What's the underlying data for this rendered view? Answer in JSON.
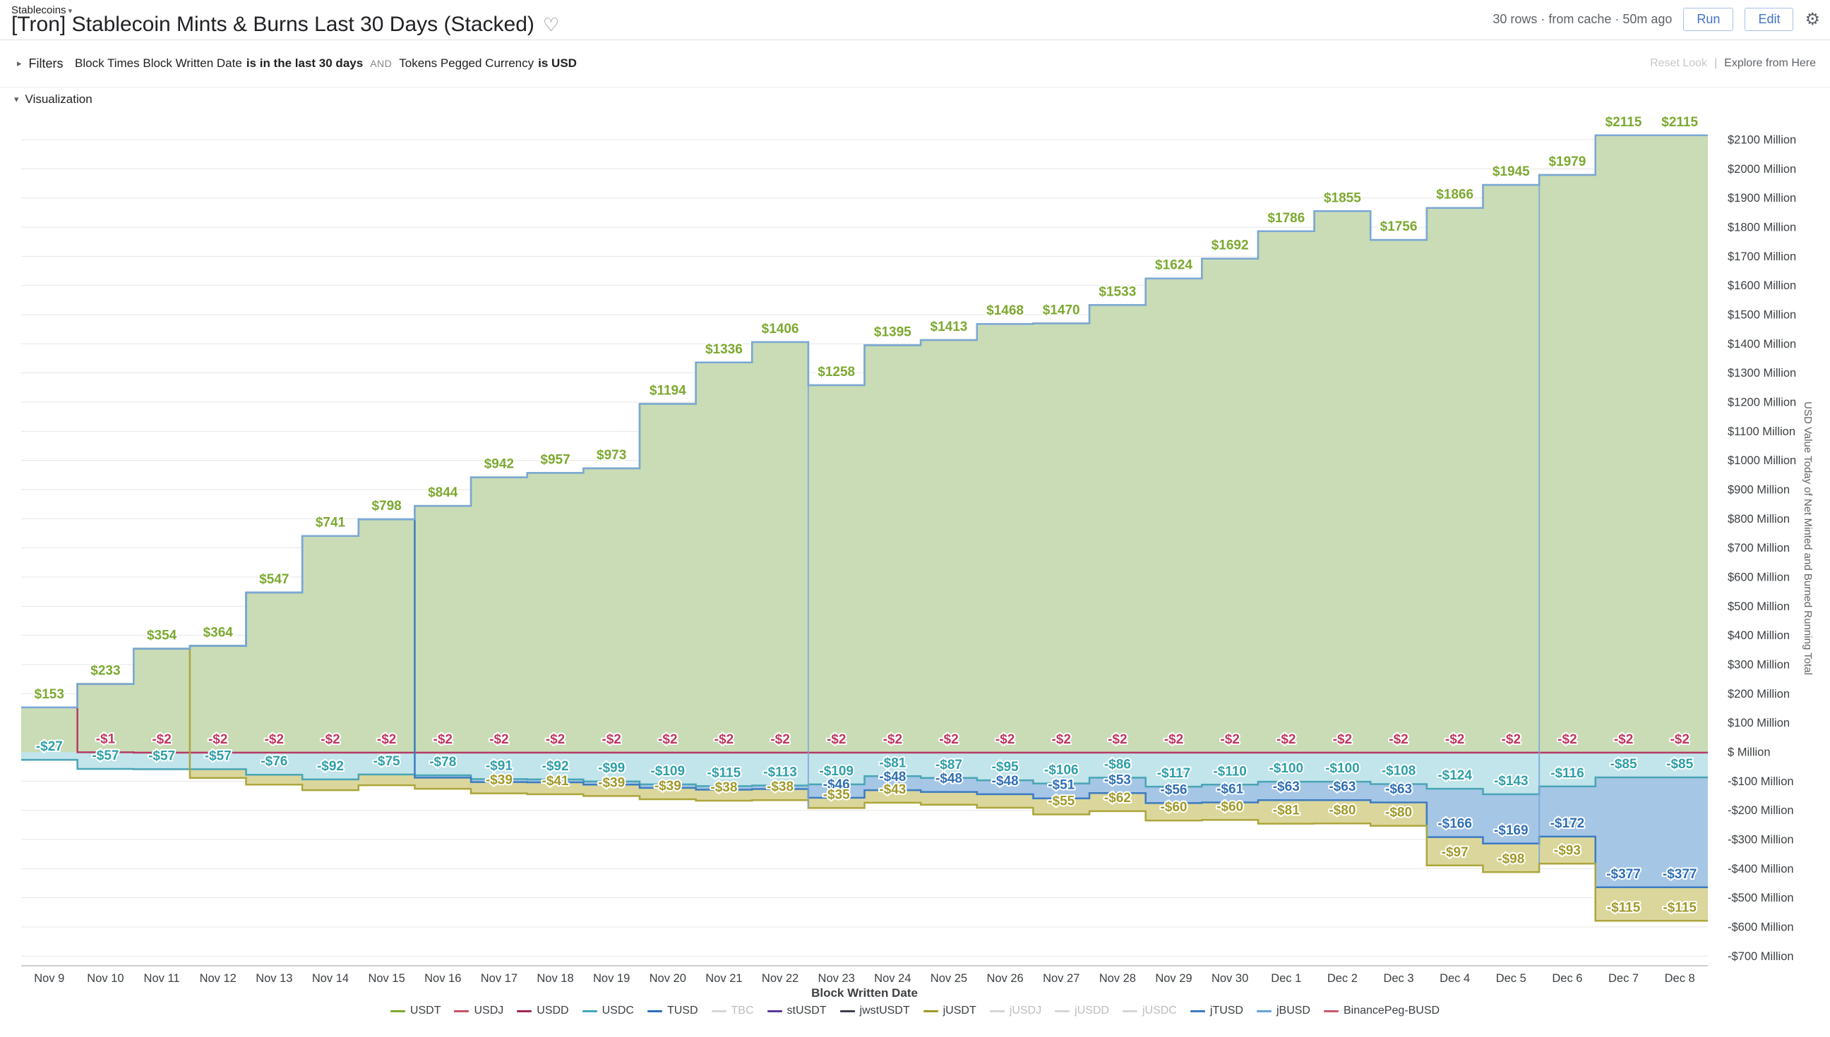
{
  "header": {
    "breadcrumb": "Stablecoins",
    "title": "[Tron] Stablecoin Mints & Burns Last 30 Days (Stacked)",
    "heart_icon": "♡",
    "meta": "30 rows · from cache · 50m ago",
    "run_label": "Run",
    "edit_label": "Edit",
    "gear_icon": "⚙"
  },
  "filters": {
    "section_label": "Filters",
    "clause1_field": "Block Times Block Written Date",
    "clause1_condition": "is in the last 30 days",
    "conjunction": "AND",
    "clause2_field": "Tokens Pegged Currency",
    "clause2_condition": "is USD",
    "reset_label": "Reset Look",
    "separator": "|",
    "explore_label": "Explore from Here"
  },
  "visualization": {
    "section_label": "Visualization"
  },
  "chart_data": {
    "type": "area",
    "stacked": true,
    "step": true,
    "unit": "USD Millions",
    "xlabel": "Block Written Date",
    "ylabel": "USD Value Today of Net Minted and Burned Running Total",
    "ylim": [
      -700,
      2100
    ],
    "y_tick_step": 100,
    "grid": true,
    "legend_position": "bottom",
    "stack_top_line_color": "#7BA7D7",
    "y_ticks": [
      "$2100 Million",
      "$2000 Million",
      "$1900 Million",
      "$1800 Million",
      "$1700 Million",
      "$1600 Million",
      "$1500 Million",
      "$1400 Million",
      "$1300 Million",
      "$1200 Million",
      "$1100 Million",
      "$1000 Million",
      "$900 Million",
      "$800 Million",
      "$700 Million",
      "$600 Million",
      "$500 Million",
      "$400 Million",
      "$300 Million",
      "$200 Million",
      "$100 Million",
      "$ Million",
      "-$100 Million",
      "-$200 Million",
      "-$300 Million",
      "-$400 Million",
      "-$500 Million",
      "-$600 Million",
      "-$700 Million"
    ],
    "categories": [
      "Nov 9",
      "Nov 10",
      "Nov 11",
      "Nov 12",
      "Nov 13",
      "Nov 14",
      "Nov 15",
      "Nov 16",
      "Nov 17",
      "Nov 18",
      "Nov 19",
      "Nov 20",
      "Nov 21",
      "Nov 22",
      "Nov 23",
      "Nov 24",
      "Nov 25",
      "Nov 26",
      "Nov 27",
      "Nov 28",
      "Nov 29",
      "Nov 30",
      "Dec 1",
      "Dec 2",
      "Dec 3",
      "Dec 4",
      "Dec 5",
      "Dec 6",
      "Dec 7",
      "Dec 8"
    ],
    "series": [
      {
        "name": "USDT",
        "color": "#7CA930",
        "line": "#8FBC61",
        "fill": "#C9DCB6",
        "label_color": "#7CA930",
        "values": [
          153,
          233,
          354,
          364,
          547,
          741,
          798,
          844,
          942,
          957,
          973,
          1194,
          1336,
          1406,
          1258,
          1395,
          1413,
          1468,
          1470,
          1533,
          1624,
          1692,
          1786,
          1855,
          1756,
          1866,
          1945,
          1979,
          2115,
          2115
        ],
        "labels": [
          "$153",
          "$233",
          "$354",
          "$364",
          "$547",
          "$741",
          "$798",
          "$844",
          "$942",
          "$957",
          "$973",
          "$1194",
          "$1336",
          "$1406",
          "$1258",
          "$1395",
          "$1413",
          "$1468",
          "$1470",
          "$1533",
          "$1624",
          "$1692",
          "$1786",
          "$1855",
          "$1756",
          "$1866",
          "$1945",
          "$1979",
          "$2115",
          "$2115"
        ]
      },
      {
        "name": "USDD",
        "color": "#B43A64",
        "line": "#B43A64",
        "fill": "#E3BBCC",
        "label_color": "#BE3860",
        "values": [
          0,
          -1,
          -2,
          -2,
          -2,
          -2,
          -2,
          -2,
          -2,
          -2,
          -2,
          -2,
          -2,
          -2,
          -2,
          -2,
          -2,
          -2,
          -2,
          -2,
          -2,
          -2,
          -2,
          -2,
          -2,
          -2,
          -2,
          -2,
          -2,
          -2
        ],
        "labels": [
          "",
          "-$1",
          "-$2",
          "-$2",
          "-$2",
          "-$2",
          "-$2",
          "-$2",
          "-$2",
          "-$2",
          "-$2",
          "-$2",
          "-$2",
          "-$2",
          "-$2",
          "-$2",
          "-$2",
          "-$2",
          "-$2",
          "-$2",
          "-$2",
          "-$2",
          "-$2",
          "-$2",
          "-$2",
          "-$2",
          "-$2",
          "-$2",
          "-$2",
          "-$2"
        ]
      },
      {
        "name": "USDC",
        "color": "#3FA9B8",
        "line": "#49A5B5",
        "fill": "#C2E4EB",
        "label_color": "#2E9FA8",
        "values": [
          -27,
          -57,
          -57,
          -57,
          -76,
          -92,
          -75,
          -78,
          -91,
          -92,
          -99,
          -109,
          -115,
          -113,
          -109,
          -81,
          -87,
          -95,
          -106,
          -86,
          -117,
          -110,
          -100,
          -100,
          -108,
          -124,
          -143,
          -116,
          -85,
          -85
        ],
        "labels": [
          "-$27",
          "-$57",
          "-$57",
          "-$57",
          "-$76",
          "-$92",
          "-$75",
          "-$78",
          "-$91",
          "-$92",
          "-$99",
          "-$109",
          "-$115",
          "-$113",
          "-$109",
          "-$81",
          "-$87",
          "-$95",
          "-$106",
          "-$86",
          "-$117",
          "-$110",
          "-$100",
          "-$100",
          "-$108",
          "-$124",
          "-$143",
          "-$116",
          "-$85",
          "-$85"
        ]
      },
      {
        "name": "TUSD",
        "color": "#2F6FB5",
        "line": "#3D7BC0",
        "fill": "#A6C6E6",
        "label_color": "#2F6FB5",
        "values": [
          0,
          0,
          0,
          0,
          0,
          0,
          0,
          -8,
          -10,
          -10,
          -11,
          -12,
          -12,
          -12,
          -46,
          -48,
          -48,
          -48,
          -51,
          -53,
          -56,
          -61,
          -63,
          -63,
          -63,
          -166,
          -169,
          -172,
          -377,
          -377
        ],
        "labels": [
          "",
          "",
          "",
          "",
          "",
          "",
          "",
          "",
          "",
          "",
          "",
          "",
          "",
          "",
          "-$46",
          "-$48",
          "-$48",
          "-$48",
          "-$51",
          "-$53",
          "-$56",
          "-$61",
          "-$63",
          "-$63",
          "-$63",
          "-$166",
          "-$169",
          "-$172",
          "-$377",
          "-$377"
        ]
      },
      {
        "name": "jUSDT",
        "color": "#A09A28",
        "line": "#ACA53C",
        "fill": "#DBD79C",
        "label_color": "#A09A28",
        "values": [
          0,
          0,
          0,
          -30,
          -34,
          -37,
          -37,
          -38,
          -39,
          -41,
          -39,
          -39,
          -38,
          -38,
          -35,
          -43,
          -44,
          -46,
          -55,
          -62,
          -60,
          -60,
          -81,
          -80,
          -80,
          -97,
          -98,
          -93,
          -115,
          -115
        ],
        "labels": [
          "",
          "",
          "",
          "",
          "",
          "",
          "",
          "",
          "-$39",
          "-$41",
          "-$39",
          "-$39",
          "-$38",
          "-$38",
          "-$35",
          "-$43",
          "",
          "",
          "-$55",
          "-$62",
          "-$60",
          "-$60",
          "-$81",
          "-$80",
          "-$80",
          "-$97",
          "-$98",
          "-$93",
          "-$115",
          "-$115"
        ]
      }
    ],
    "legend": [
      {
        "label": "USDT",
        "color": "#7CA930",
        "active": true
      },
      {
        "label": "USDJ",
        "color": "#C94F63",
        "active": true
      },
      {
        "label": "USDD",
        "color": "#9E2B4F",
        "active": true
      },
      {
        "label": "USDC",
        "color": "#3FA9B8",
        "active": true
      },
      {
        "label": "TUSD",
        "color": "#2F6FB5",
        "active": true
      },
      {
        "label": "TBC",
        "color": "#CFCFCF",
        "active": false
      },
      {
        "label": "stUSDT",
        "color": "#5B3A9B",
        "active": true
      },
      {
        "label": "jwstUSDT",
        "color": "#3A3F4A",
        "active": true
      },
      {
        "label": "jUSDT",
        "color": "#A09A28",
        "active": true
      },
      {
        "label": "jUSDJ",
        "color": "#CFCFCF",
        "active": false
      },
      {
        "label": "jUSDD",
        "color": "#CFCFCF",
        "active": false
      },
      {
        "label": "jUSDC",
        "color": "#CFCFCF",
        "active": false
      },
      {
        "label": "jTUSD",
        "color": "#3D7BC0",
        "active": true
      },
      {
        "label": "jBUSD",
        "color": "#63A3DC",
        "active": true
      },
      {
        "label": "BinancePeg-BUSD",
        "color": "#C75A6E",
        "active": true
      }
    ]
  }
}
